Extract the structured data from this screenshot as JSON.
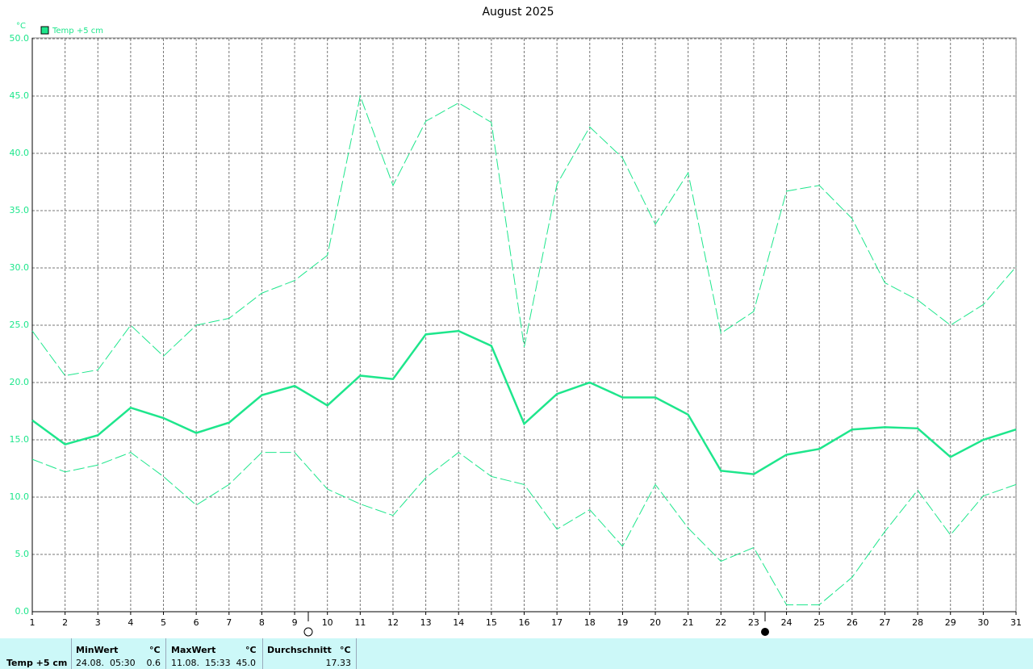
{
  "chart_data": {
    "type": "line",
    "title": "August 2025",
    "ylabel": "°C",
    "x": [
      1,
      2,
      3,
      4,
      5,
      6,
      7,
      8,
      9,
      10,
      11,
      12,
      13,
      14,
      15,
      16,
      17,
      18,
      19,
      20,
      21,
      22,
      23,
      24,
      25,
      26,
      27,
      28,
      29,
      30,
      31
    ],
    "xlim": [
      1,
      31
    ],
    "xticks": [
      1,
      2,
      3,
      4,
      5,
      6,
      7,
      8,
      9,
      10,
      11,
      12,
      13,
      14,
      15,
      16,
      17,
      18,
      19,
      20,
      21,
      22,
      23,
      24,
      25,
      26,
      27,
      28,
      29,
      30,
      31
    ],
    "ylim": [
      0,
      50
    ],
    "yticks": [
      {
        "value": 0,
        "label": "0.0"
      },
      {
        "value": 5,
        "label": "5.0"
      },
      {
        "value": 10,
        "label": "10.0"
      },
      {
        "value": 15,
        "label": "15.0"
      },
      {
        "value": 20,
        "label": "20.0"
      },
      {
        "value": 25,
        "label": "25.0"
      },
      {
        "value": 30,
        "label": "30.0"
      },
      {
        "value": 35,
        "label": "35.0"
      },
      {
        "value": 40,
        "label": "40.0"
      },
      {
        "value": 45,
        "label": "45.0"
      },
      {
        "value": 50,
        "label": "50.0"
      }
    ],
    "grid": true,
    "legend": "top-left",
    "series": [
      {
        "name": "Temp +5 cm",
        "color": "#1ee68c",
        "dashed": false,
        "values": [
          16.7,
          14.6,
          15.4,
          17.8,
          16.9,
          15.6,
          16.5,
          18.9,
          19.7,
          18.0,
          20.6,
          20.3,
          24.2,
          24.5,
          23.2,
          16.4,
          19.0,
          20.0,
          18.7,
          18.7,
          17.2,
          12.3,
          12.0,
          13.7,
          14.2,
          15.9,
          16.1,
          16.0,
          13.5,
          15.0,
          15.9
        ]
      },
      {
        "color": "#1ee68c",
        "dashed": true,
        "values": [
          24.5,
          20.6,
          21.1,
          25.0,
          22.3,
          25.0,
          25.6,
          27.8,
          28.9,
          31.1,
          45.0,
          37.2,
          42.8,
          44.4,
          42.7,
          23.1,
          37.3,
          42.3,
          39.6,
          33.8,
          38.3,
          24.3,
          26.2,
          36.7,
          37.2,
          34.3,
          28.7,
          27.2,
          25.0,
          26.8,
          30.1
        ]
      },
      {
        "color": "#1ee68c",
        "dashed": true,
        "values": [
          13.3,
          12.2,
          12.8,
          13.9,
          11.8,
          9.3,
          11.1,
          13.9,
          13.9,
          10.7,
          9.4,
          8.4,
          11.7,
          13.9,
          11.8,
          11.1,
          7.2,
          8.9,
          5.7,
          11.1,
          7.3,
          4.4,
          5.6,
          0.6,
          0.6,
          3.0,
          7.0,
          10.6,
          6.7,
          10.1,
          11.1
        ]
      }
    ]
  },
  "footer": {
    "label": "Temp +5 cm",
    "columns": [
      {
        "title": "MinWert",
        "unit": "°C",
        "time": "24.08.  05:30",
        "value": "0.6"
      },
      {
        "title": "MaxWert",
        "unit": "°C",
        "time": "11.08.  15:33",
        "value": "45.0"
      },
      {
        "title": "Durchschnitt",
        "unit": "°C",
        "value": "17.33"
      }
    ]
  }
}
